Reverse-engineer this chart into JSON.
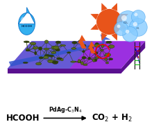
{
  "fig_width": 2.22,
  "fig_height": 1.89,
  "dpi": 100,
  "bg_color": "#ffffff",
  "platform_color": "#9b30e0",
  "platform_shadow_color": "#5a1090",
  "platform_blue_stripe": "#4477cc",
  "sun_body_color": "#e8541a",
  "lightning_color": "#e8541a",
  "water_drop_color": "#22aaee",
  "bubble_color": "#88ccff",
  "arrow_color": "#3355cc",
  "bottom_text_color": "#000000",
  "catalyst_text_color": "#000000",
  "nanoparticle_color": "#5a6e1a",
  "nanoparticle_dark": "#2a3a05"
}
